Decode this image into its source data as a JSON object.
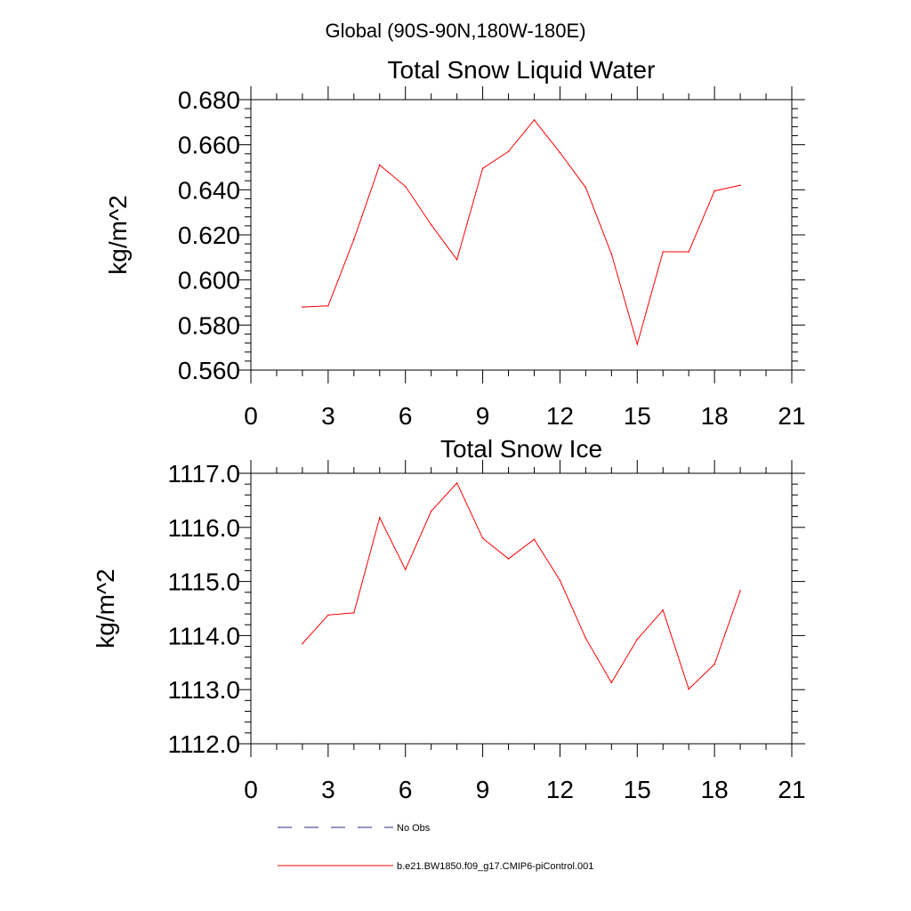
{
  "supertitle": "Global (90S-90N,180W-180E)",
  "colors": {
    "series": "#ff0000",
    "obs": "#2a2a8a",
    "axis": "#000000"
  },
  "legend": [
    {
      "label": "No Obs",
      "style": "dashed",
      "color": "#2a2a8a"
    },
    {
      "label": "b.e21.BW1850.f09_g17.CMIP6-piControl.001",
      "style": "solid",
      "color": "#ff0000"
    }
  ],
  "chart_data": [
    {
      "type": "line",
      "title": "Total Snow Liquid Water",
      "ylabel": "kg/m^2",
      "xlabel": "",
      "xlim": [
        0,
        21
      ],
      "ylim": [
        0.56,
        0.68
      ],
      "xticks": [
        0,
        3,
        6,
        9,
        12,
        15,
        18,
        21
      ],
      "yticks": [
        0.56,
        0.58,
        0.6,
        0.62,
        0.64,
        0.66,
        0.68
      ],
      "xtick_labels": [
        "0",
        "3",
        "6",
        "9",
        "12",
        "15",
        "18",
        "21"
      ],
      "ytick_labels": [
        "0.560",
        "0.580",
        "0.600",
        "0.620",
        "0.640",
        "0.660",
        "0.680"
      ],
      "series": [
        {
          "name": "b.e21.BW1850.f09_g17.CMIP6-piControl.001",
          "x": [
            2,
            3,
            4,
            5,
            6,
            7,
            8,
            9,
            10,
            11,
            12,
            13,
            14,
            15,
            16,
            17,
            18,
            19
          ],
          "values": [
            0.588,
            0.5885,
            0.618,
            0.651,
            0.6415,
            0.6245,
            0.609,
            0.6495,
            0.657,
            0.671,
            0.6565,
            0.641,
            0.6115,
            0.5715,
            0.6125,
            0.6125,
            0.6395,
            0.642
          ]
        }
      ]
    },
    {
      "type": "line",
      "title": "Total Snow Ice",
      "ylabel": "kg/m^2",
      "xlabel": "",
      "xlim": [
        0,
        21
      ],
      "ylim": [
        1112.0,
        1117.0
      ],
      "xticks": [
        0,
        3,
        6,
        9,
        12,
        15,
        18,
        21
      ],
      "yticks": [
        1112,
        1113,
        1114,
        1115,
        1116,
        1117
      ],
      "xtick_labels": [
        "0",
        "3",
        "6",
        "9",
        "12",
        "15",
        "18",
        "21"
      ],
      "ytick_labels": [
        "1112.0",
        "1113.0",
        "1114.0",
        "1115.0",
        "1116.0",
        "1117.0"
      ],
      "series": [
        {
          "name": "b.e21.BW1850.f09_g17.CMIP6-piControl.001",
          "x": [
            2,
            3,
            4,
            5,
            6,
            7,
            8,
            9,
            10,
            11,
            12,
            13,
            14,
            15,
            16,
            17,
            18,
            19
          ],
          "values": [
            1113.85,
            1114.38,
            1114.42,
            1116.18,
            1115.22,
            1116.3,
            1116.82,
            1115.8,
            1115.42,
            1115.78,
            1115.02,
            1113.95,
            1113.13,
            1113.93,
            1114.47,
            1113.01,
            1113.47,
            1114.83
          ]
        }
      ]
    }
  ]
}
